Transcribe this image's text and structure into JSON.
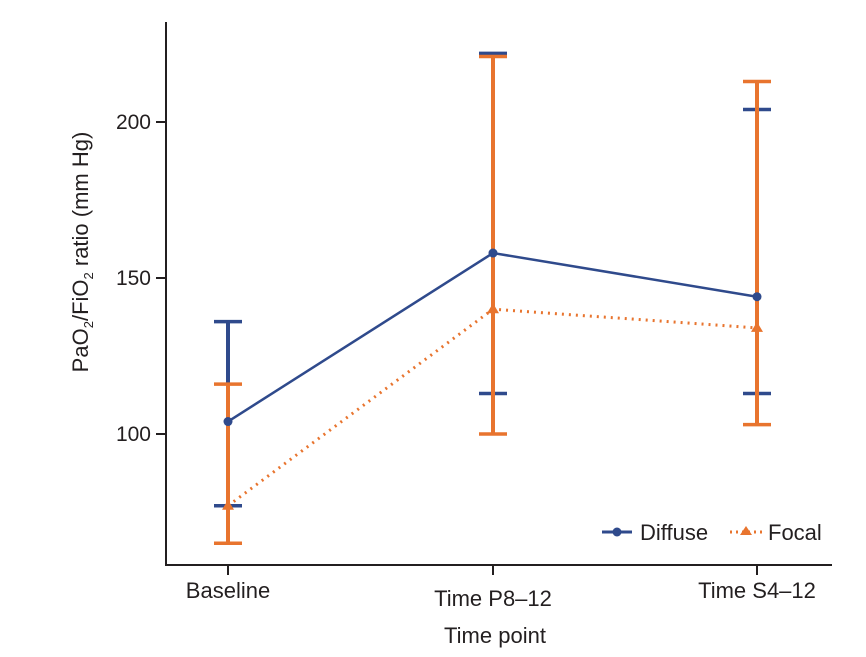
{
  "chart_data": {
    "type": "line",
    "title": "",
    "xlabel": "Time point",
    "ylabel_parts": [
      "PaO",
      "2",
      "/FiO",
      "2",
      " ratio (mm Hg)"
    ],
    "ylabel": "PaO2/FiO2 ratio (mm Hg)",
    "categories": [
      "Baseline",
      "Time P8–12",
      "Time S4–12"
    ],
    "ylim": [
      56,
      232
    ],
    "yticks": [
      100,
      150,
      200
    ],
    "grid": false,
    "legend_position": "bottom-right",
    "series": [
      {
        "name": "Diffuse",
        "color": "#2f4a8c",
        "line_style": "solid",
        "marker": "circle",
        "values": [
          104,
          158,
          144
        ],
        "error_upper": [
          136,
          222,
          204
        ],
        "error_lower": [
          77,
          113,
          113
        ]
      },
      {
        "name": "Focal",
        "color": "#e8742e",
        "line_style": "dotted",
        "marker": "triangle",
        "values": [
          77,
          140,
          134
        ],
        "error_upper": [
          116,
          221,
          213
        ],
        "error_lower": [
          65,
          100,
          103
        ]
      }
    ]
  }
}
